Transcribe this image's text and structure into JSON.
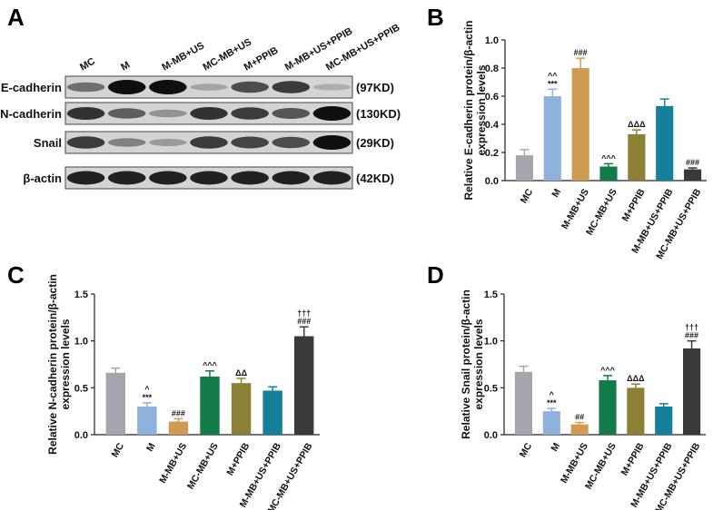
{
  "figure": {
    "panel_letters": [
      "A",
      "B",
      "C",
      "D"
    ]
  },
  "blot": {
    "lane_labels": [
      "MC",
      "M",
      "M-MB+US",
      "MC-MB+US",
      "M+PPIB",
      "M-MB+US+PPIB",
      "MC-MB+US+PPIB"
    ],
    "rows": [
      {
        "protein": "E-cadherin",
        "size": "(97KD)",
        "intensity": [
          0.45,
          1.0,
          1.0,
          0.15,
          0.65,
          0.75,
          0.1
        ]
      },
      {
        "protein": "N-cadherin",
        "size": "(130KD)",
        "intensity": [
          0.8,
          0.55,
          0.25,
          0.8,
          0.75,
          0.6,
          1.0
        ]
      },
      {
        "protein": "Snail",
        "size": "(29KD)",
        "intensity": [
          0.75,
          0.35,
          0.2,
          0.75,
          0.7,
          0.65,
          1.0
        ]
      },
      {
        "protein": "β-actin",
        "size": "(42KD)",
        "intensity": [
          0.9,
          0.9,
          0.9,
          0.9,
          0.9,
          0.9,
          0.9
        ]
      }
    ]
  },
  "colors": {
    "bars": [
      "#a5a5ad",
      "#8fb2dc",
      "#cf9a52",
      "#137a4a",
      "#8c7f36",
      "#14809a",
      "#3a3a3a"
    ]
  },
  "chart_data": [
    {
      "panel": "B",
      "type": "bar",
      "categories": [
        "MC",
        "M",
        "M-MB+US",
        "MC-MB+US",
        "M+PPIB",
        "M-MB+US+PPIB",
        "MC-MB+US+PPIB"
      ],
      "values": [
        0.18,
        0.6,
        0.8,
        0.1,
        0.33,
        0.53,
        0.08
      ],
      "errors": [
        0.04,
        0.05,
        0.07,
        0.02,
        0.03,
        0.05,
        0.01
      ],
      "annotations": [
        [],
        [
          "^^",
          "***"
        ],
        [
          "###"
        ],
        [
          "^^^"
        ],
        [
          "ΔΔΔ"
        ],
        [],
        [
          "###"
        ]
      ],
      "ylabel": [
        "Relative E-cadherin protein/β-actin",
        "expression levels"
      ],
      "ylim": [
        0,
        1.0
      ],
      "yticks": [
        0.0,
        0.2,
        0.4,
        0.6,
        0.8,
        1.0
      ],
      "ytick_labels": [
        "0.0",
        "0.2",
        "0.4",
        "0.6",
        "0.8",
        "1.0"
      ]
    },
    {
      "panel": "C",
      "type": "bar",
      "categories": [
        "MC",
        "M",
        "M-MB+US",
        "MC-MB+US",
        "M+PPIB",
        "M-MB+US+PPIB",
        "MC-MB+US+PPIB"
      ],
      "values": [
        0.66,
        0.3,
        0.14,
        0.62,
        0.55,
        0.47,
        1.05
      ],
      "errors": [
        0.05,
        0.04,
        0.03,
        0.06,
        0.05,
        0.04,
        0.1
      ],
      "annotations": [
        [],
        [
          "^",
          "***"
        ],
        [
          "###"
        ],
        [
          "^^^"
        ],
        [
          "ΔΔ"
        ],
        [],
        [
          "†††",
          "###"
        ]
      ],
      "ylabel": [
        "Relative N-cadherin protein/β-actin",
        "expression levels"
      ],
      "ylim": [
        0,
        1.5
      ],
      "yticks": [
        0.0,
        0.5,
        1.0,
        1.5
      ],
      "ytick_labels": [
        "0.0",
        "0.5",
        "1.0",
        "1.5"
      ]
    },
    {
      "panel": "D",
      "type": "bar",
      "categories": [
        "MC",
        "M",
        "M-MB+US",
        "MC-MB+US",
        "M+PPIB",
        "M-MB+US+PPIB",
        "MC-MB+US+PPIB"
      ],
      "values": [
        0.67,
        0.25,
        0.11,
        0.58,
        0.5,
        0.3,
        0.92
      ],
      "errors": [
        0.06,
        0.03,
        0.02,
        0.05,
        0.04,
        0.03,
        0.08
      ],
      "annotations": [
        [],
        [
          "^",
          "***"
        ],
        [
          "##"
        ],
        [
          "^^^"
        ],
        [
          "ΔΔΔ"
        ],
        [],
        [
          "†††",
          "###"
        ]
      ],
      "ylabel": [
        "Relative Snail protein/β-actin",
        "expression levels"
      ],
      "ylim": [
        0,
        1.5
      ],
      "yticks": [
        0.0,
        0.5,
        1.0,
        1.5
      ],
      "ytick_labels": [
        "0.0",
        "0.5",
        "1.0",
        "1.5"
      ]
    }
  ]
}
